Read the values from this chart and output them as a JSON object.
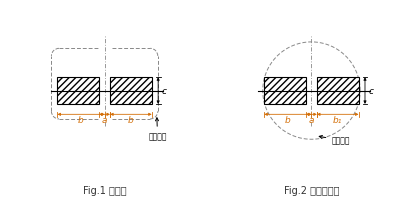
{
  "fig1_label": "Fig.1 贴片型",
  "fig2_label": "Fig.2 铸模贴片型",
  "label_a": "a",
  "label_b": "b",
  "label_b1": "b₁",
  "label_c": "c",
  "label_product": "产品外形",
  "line_color": "#000000",
  "dim_color": "#d4700a",
  "dash_color": "#888888",
  "bg_color": "#ffffff",
  "fig_label_color": "#333333"
}
